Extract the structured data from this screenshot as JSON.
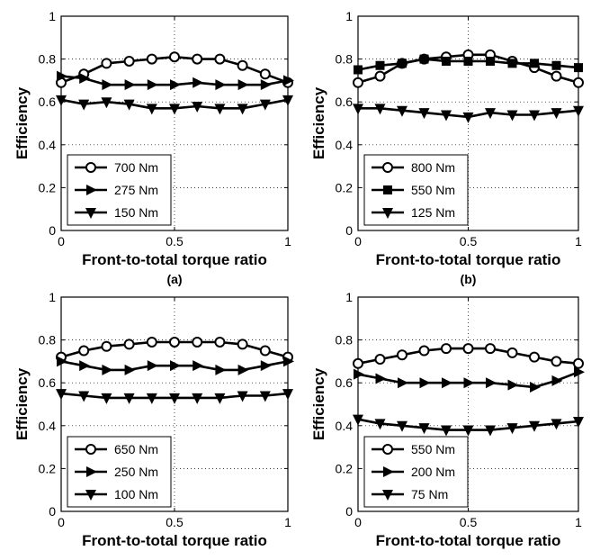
{
  "chart_data": [
    {
      "type": "line",
      "caption": "(a)",
      "xlabel": "Front-to-total torque ratio",
      "ylabel": "Efficiency",
      "xlim": [
        0,
        1
      ],
      "ylim": [
        0,
        1
      ],
      "xticks": [
        "0",
        "0.5",
        "1"
      ],
      "yticks": [
        "0",
        "0.2",
        "0.4",
        "0.6",
        "0.8",
        "1"
      ],
      "grid": true,
      "legend_position": "bottom-left",
      "x": [
        0,
        0.1,
        0.2,
        0.3,
        0.4,
        0.5,
        0.6,
        0.7,
        0.8,
        0.9,
        1.0
      ],
      "series": [
        {
          "name": "700 Nm",
          "marker": "circle",
          "values": [
            0.69,
            0.73,
            0.78,
            0.79,
            0.8,
            0.81,
            0.8,
            0.8,
            0.77,
            0.73,
            0.69
          ]
        },
        {
          "name": "275 Nm",
          "marker": "triangle-right",
          "values": [
            0.72,
            0.71,
            0.68,
            0.68,
            0.68,
            0.68,
            0.69,
            0.68,
            0.68,
            0.68,
            0.7
          ]
        },
        {
          "name": "150 Nm",
          "marker": "triangle-down",
          "values": [
            0.61,
            0.59,
            0.6,
            0.59,
            0.57,
            0.57,
            0.58,
            0.57,
            0.57,
            0.59,
            0.61
          ]
        }
      ]
    },
    {
      "type": "line",
      "caption": "(b)",
      "xlabel": "Front-to-total torque ratio",
      "ylabel": "Efficiency",
      "xlim": [
        0,
        1
      ],
      "ylim": [
        0,
        1
      ],
      "xticks": [
        "0",
        "0.5",
        "1"
      ],
      "yticks": [
        "0",
        "0.2",
        "0.4",
        "0.6",
        "0.8",
        "1"
      ],
      "grid": true,
      "legend_position": "bottom-left",
      "x": [
        0,
        0.1,
        0.2,
        0.3,
        0.4,
        0.5,
        0.6,
        0.7,
        0.8,
        0.9,
        1.0
      ],
      "series": [
        {
          "name": "800 Nm",
          "marker": "circle",
          "values": [
            0.69,
            0.72,
            0.78,
            0.8,
            0.81,
            0.82,
            0.82,
            0.79,
            0.76,
            0.72,
            0.69
          ]
        },
        {
          "name": "550 Nm",
          "marker": "square",
          "values": [
            0.75,
            0.77,
            0.78,
            0.8,
            0.79,
            0.79,
            0.79,
            0.78,
            0.78,
            0.77,
            0.76
          ]
        },
        {
          "name": "125 Nm",
          "marker": "triangle-down",
          "values": [
            0.57,
            0.57,
            0.56,
            0.55,
            0.54,
            0.53,
            0.55,
            0.54,
            0.54,
            0.55,
            0.56
          ]
        }
      ]
    },
    {
      "type": "line",
      "caption": "",
      "xlabel": "Front-to-total torque ratio",
      "ylabel": "Efficiency",
      "xlim": [
        0,
        1
      ],
      "ylim": [
        0,
        1
      ],
      "xticks": [
        "0",
        "0.5",
        "1"
      ],
      "yticks": [
        "0",
        "0.2",
        "0.4",
        "0.6",
        "0.8",
        "1"
      ],
      "grid": true,
      "legend_position": "bottom-left",
      "x": [
        0,
        0.1,
        0.2,
        0.3,
        0.4,
        0.5,
        0.6,
        0.7,
        0.8,
        0.9,
        1.0
      ],
      "series": [
        {
          "name": "650 Nm",
          "marker": "circle",
          "values": [
            0.72,
            0.75,
            0.77,
            0.78,
            0.79,
            0.79,
            0.79,
            0.79,
            0.78,
            0.75,
            0.72
          ]
        },
        {
          "name": "250 Nm",
          "marker": "triangle-right",
          "values": [
            0.7,
            0.68,
            0.66,
            0.66,
            0.68,
            0.68,
            0.68,
            0.66,
            0.66,
            0.68,
            0.7
          ]
        },
        {
          "name": "100 Nm",
          "marker": "triangle-down",
          "values": [
            0.55,
            0.54,
            0.53,
            0.53,
            0.53,
            0.53,
            0.53,
            0.53,
            0.54,
            0.54,
            0.55
          ]
        }
      ]
    },
    {
      "type": "line",
      "caption": "",
      "xlabel": "Front-to-total torque ratio",
      "ylabel": "Efficiency",
      "xlim": [
        0,
        1
      ],
      "ylim": [
        0,
        1
      ],
      "xticks": [
        "0",
        "0.5",
        "1"
      ],
      "yticks": [
        "0",
        "0.2",
        "0.4",
        "0.6",
        "0.8",
        "1"
      ],
      "grid": true,
      "legend_position": "bottom-left",
      "x": [
        0,
        0.1,
        0.2,
        0.3,
        0.4,
        0.5,
        0.6,
        0.7,
        0.8,
        0.9,
        1.0
      ],
      "series": [
        {
          "name": "550 Nm",
          "marker": "circle",
          "values": [
            0.69,
            0.71,
            0.73,
            0.75,
            0.76,
            0.76,
            0.76,
            0.74,
            0.72,
            0.7,
            0.69
          ]
        },
        {
          "name": "200 Nm",
          "marker": "triangle-right",
          "values": [
            0.64,
            0.62,
            0.6,
            0.6,
            0.6,
            0.6,
            0.6,
            0.59,
            0.58,
            0.61,
            0.65
          ]
        },
        {
          "name": "75 Nm",
          "marker": "triangle-down",
          "values": [
            0.43,
            0.41,
            0.4,
            0.39,
            0.38,
            0.38,
            0.38,
            0.39,
            0.4,
            0.41,
            0.42
          ]
        }
      ]
    }
  ]
}
